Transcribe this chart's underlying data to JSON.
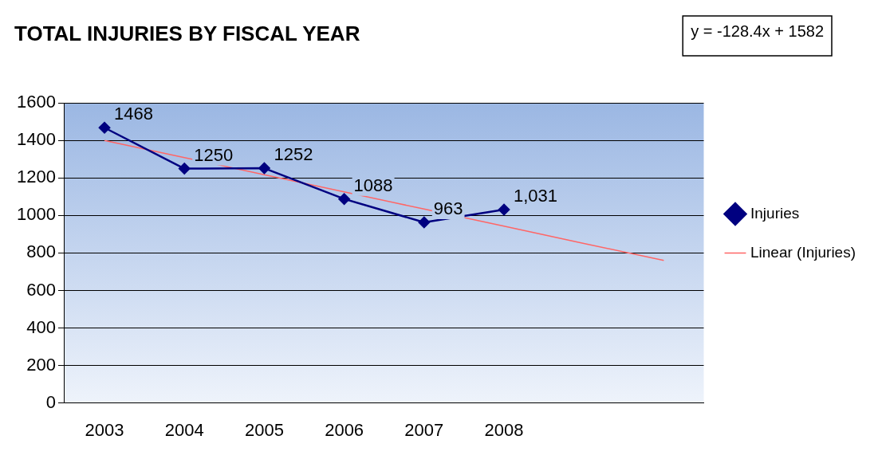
{
  "chart_data": {
    "type": "line",
    "title": "TOTAL INJURIES BY FISCAL YEAR",
    "categories": [
      "2003",
      "2004",
      "2005",
      "2006",
      "2007",
      "2008",
      null,
      null
    ],
    "series": [
      {
        "name": "Injuries",
        "color": "#000080",
        "marker": "diamond",
        "values": [
          1468,
          1250,
          1252,
          1088,
          963,
          1031,
          null,
          null
        ],
        "value_labels": [
          "1468",
          "1250",
          "1252",
          "1088",
          "963",
          "1,031",
          null,
          null
        ]
      },
      {
        "name": "Linear (Injuries)",
        "color": "#ff6666",
        "marker": "none",
        "values": [
          1400,
          1309,
          1217,
          1126,
          1034,
          943,
          851,
          760
        ]
      }
    ],
    "ylim": [
      0,
      1600
    ],
    "yticks": [
      0,
      200,
      400,
      600,
      800,
      1000,
      1200,
      1400,
      1600
    ],
    "grid": "y",
    "legend": "right",
    "line_style": "solid",
    "annotations": [
      "y = -128.4x + 1582"
    ]
  }
}
